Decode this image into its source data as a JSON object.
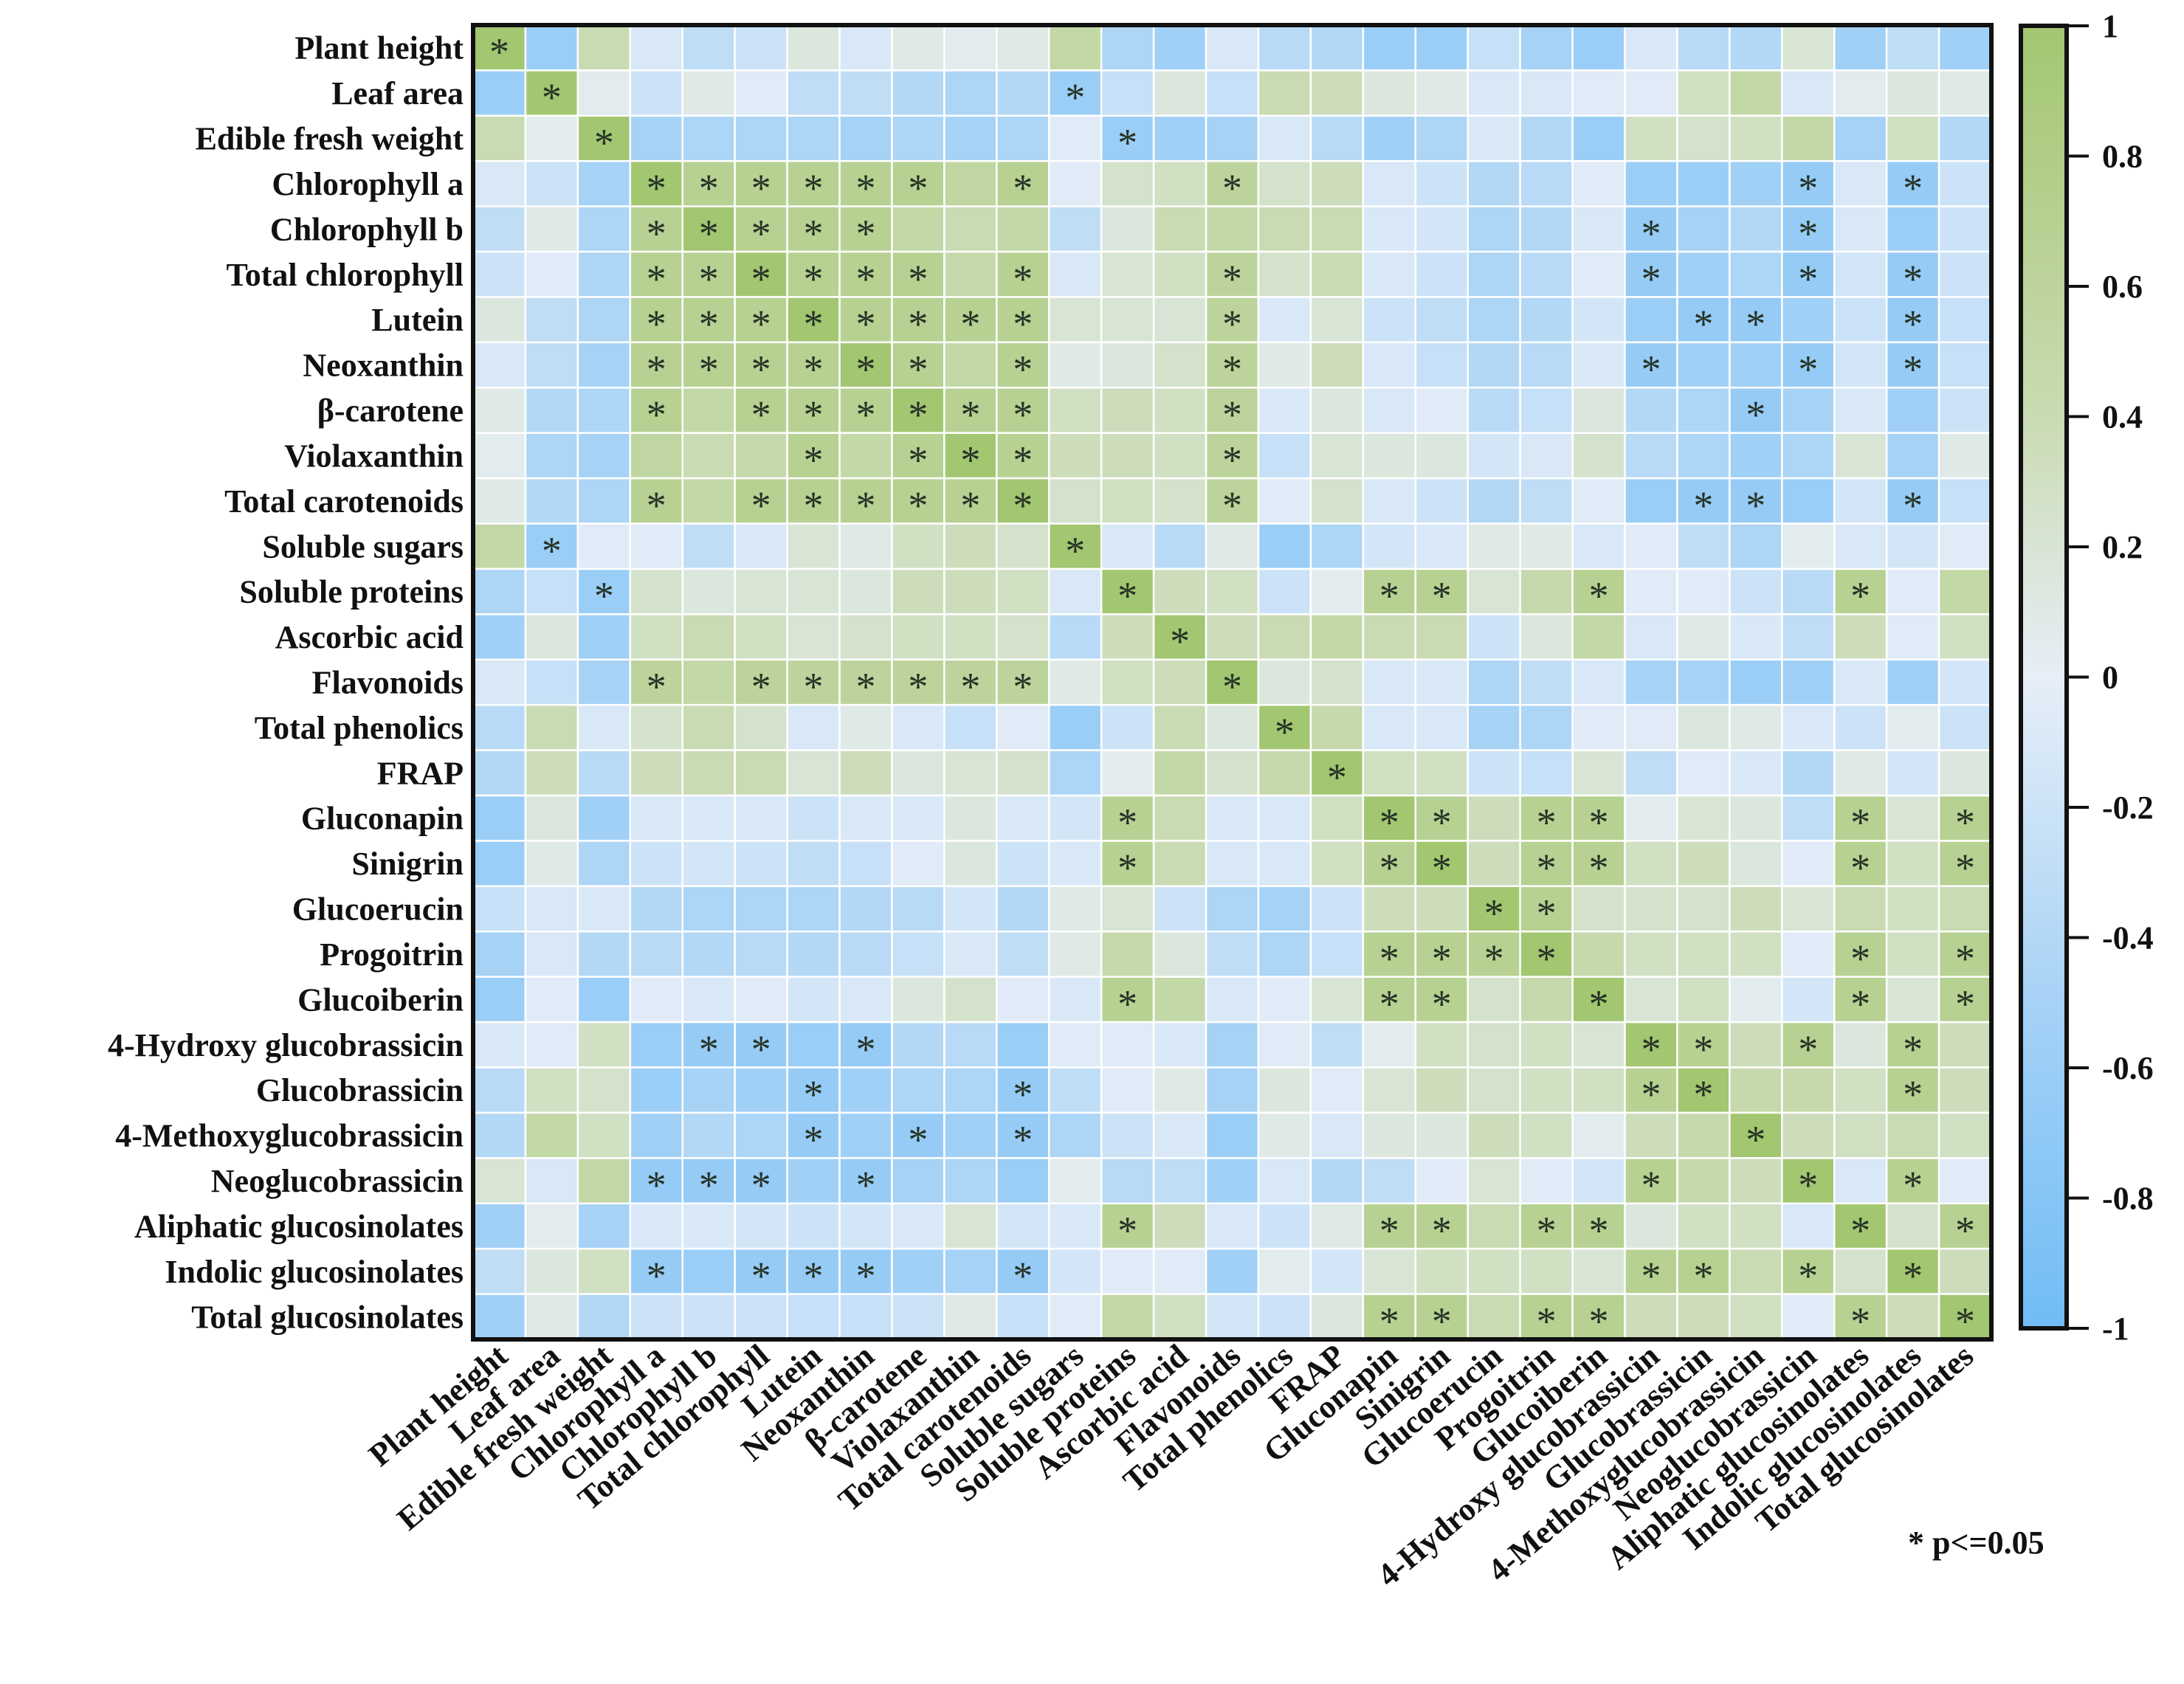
{
  "chart_data": {
    "type": "heatmap",
    "title": "",
    "symmetric": true,
    "variables": [
      "Plant height",
      "Leaf area",
      "Edible fresh weight",
      "Chlorophyll a",
      "Chlorophyll b",
      "Total chlorophyll",
      "Lutein",
      "Neoxanthin",
      "β-carotene",
      "Violaxanthin",
      "Total carotenoids",
      "Soluble sugars",
      "Soluble proteins",
      "Ascorbic acid",
      "Flavonoids",
      "Total phenolics",
      "FRAP",
      "Gluconapin",
      "Sinigrin",
      "Glucoerucin",
      "Progoitrin",
      "Glucoiberin",
      "4-Hydroxy glucobrassicin",
      "Glucobrassicin",
      "4-Methoxyglucobrassicin",
      "Neoglucobrassicin",
      "Aliphatic glucosinolates",
      "Indolic glucosinolates",
      "Total glucosinolates"
    ],
    "upper_triangle_values": [
      [
        1,
        -0.6,
        0.4,
        -0.1,
        -0.3,
        -0.2,
        0.15,
        -0.1,
        0.1,
        0.05,
        0.1,
        0.5,
        -0.45,
        -0.55,
        -0.1,
        -0.35,
        -0.4,
        -0.6,
        -0.6,
        -0.25,
        -0.5,
        -0.6,
        -0.1,
        -0.35,
        -0.4,
        0.2,
        -0.55,
        -0.3,
        -0.55
      ],
      [
        1,
        0.05,
        -0.2,
        0.1,
        -0.05,
        -0.3,
        -0.3,
        -0.4,
        -0.45,
        -0.4,
        -0.6,
        -0.25,
        0.15,
        -0.25,
        0.4,
        0.35,
        0.15,
        0.1,
        -0.1,
        -0.1,
        -0.05,
        -0.05,
        0.3,
        0.5,
        -0.1,
        0.05,
        0.15,
        0.1
      ],
      [
        1,
        -0.5,
        -0.45,
        -0.45,
        -0.45,
        -0.5,
        -0.45,
        -0.5,
        -0.45,
        -0.05,
        -0.6,
        -0.55,
        -0.5,
        -0.1,
        -0.35,
        -0.55,
        -0.45,
        -0.1,
        -0.4,
        -0.6,
        0.3,
        0.25,
        0.3,
        0.5,
        -0.5,
        0.3,
        -0.4
      ],
      [
        1,
        0.7,
        0.7,
        0.7,
        0.7,
        0.7,
        0.55,
        0.7,
        -0.05,
        0.25,
        0.3,
        0.6,
        0.25,
        0.35,
        -0.1,
        -0.2,
        -0.4,
        -0.35,
        -0.05,
        -0.6,
        -0.6,
        -0.55,
        -0.65,
        -0.1,
        -0.65,
        -0.2
      ],
      [
        1,
        0.7,
        0.7,
        0.7,
        0.5,
        0.4,
        0.5,
        -0.3,
        0.15,
        0.4,
        0.5,
        0.4,
        0.4,
        -0.1,
        -0.15,
        -0.45,
        -0.4,
        -0.1,
        -0.65,
        -0.5,
        -0.4,
        -0.65,
        -0.1,
        -0.6,
        -0.2
      ],
      [
        1,
        0.7,
        0.7,
        0.7,
        0.45,
        0.7,
        -0.1,
        0.2,
        0.3,
        0.6,
        0.25,
        0.4,
        -0.1,
        -0.2,
        -0.45,
        -0.35,
        -0.05,
        -0.65,
        -0.55,
        -0.45,
        -0.65,
        -0.15,
        -0.65,
        -0.2
      ],
      [
        1,
        0.7,
        0.7,
        0.7,
        0.7,
        0.2,
        0.2,
        0.2,
        0.6,
        -0.1,
        0.2,
        -0.2,
        -0.3,
        -0.45,
        -0.4,
        -0.15,
        -0.6,
        -0.65,
        -0.65,
        -0.55,
        -0.2,
        -0.65,
        -0.25
      ],
      [
        1,
        0.7,
        0.5,
        0.7,
        0.1,
        0.15,
        0.25,
        0.6,
        0.1,
        0.35,
        -0.1,
        -0.25,
        -0.4,
        -0.35,
        -0.1,
        -0.65,
        -0.55,
        -0.55,
        -0.65,
        -0.15,
        -0.65,
        -0.25
      ],
      [
        1,
        0.7,
        0.7,
        0.3,
        0.35,
        0.3,
        0.6,
        -0.1,
        0.15,
        -0.1,
        -0.05,
        -0.35,
        -0.25,
        0.15,
        -0.4,
        -0.45,
        -0.65,
        -0.5,
        -0.1,
        -0.55,
        -0.2
      ],
      [
        1,
        0.7,
        0.35,
        0.35,
        0.3,
        0.6,
        -0.25,
        0.2,
        0.15,
        0.15,
        -0.15,
        -0.1,
        0.25,
        -0.35,
        -0.45,
        -0.55,
        -0.45,
        0.2,
        -0.5,
        0.1
      ],
      [
        1,
        0.25,
        0.3,
        0.25,
        0.6,
        -0.05,
        0.25,
        -0.1,
        -0.2,
        -0.4,
        -0.3,
        -0.05,
        -0.6,
        -0.65,
        -0.65,
        -0.6,
        -0.15,
        -0.65,
        -0.25
      ],
      [
        1,
        -0.1,
        -0.35,
        0.1,
        -0.6,
        -0.45,
        -0.15,
        -0.1,
        0.1,
        0.1,
        -0.1,
        -0.05,
        -0.3,
        -0.45,
        0.05,
        -0.1,
        -0.15,
        -0.05
      ],
      [
        1,
        0.35,
        0.3,
        -0.2,
        0.05,
        0.7,
        0.7,
        0.2,
        0.45,
        0.7,
        -0.05,
        -0.05,
        -0.2,
        -0.35,
        0.7,
        -0.05,
        0.5
      ],
      [
        1,
        0.35,
        0.4,
        0.5,
        0.4,
        0.4,
        -0.2,
        0.15,
        0.5,
        -0.1,
        0.1,
        -0.1,
        -0.3,
        0.35,
        -0.05,
        0.3
      ],
      [
        1,
        0.15,
        0.25,
        -0.1,
        -0.1,
        -0.45,
        -0.3,
        -0.1,
        -0.5,
        -0.5,
        -0.6,
        -0.55,
        -0.1,
        -0.55,
        -0.15
      ],
      [
        1,
        0.45,
        -0.1,
        -0.1,
        -0.5,
        -0.45,
        -0.05,
        -0.05,
        0.15,
        0.1,
        -0.1,
        -0.2,
        0.05,
        -0.2
      ],
      [
        1,
        0.3,
        0.3,
        -0.2,
        -0.25,
        0.2,
        -0.3,
        -0.05,
        -0.1,
        -0.4,
        0.1,
        -0.15,
        0.15
      ],
      [
        1,
        0.7,
        0.35,
        0.7,
        0.7,
        0.05,
        0.2,
        0.15,
        -0.3,
        0.7,
        0.2,
        0.7
      ],
      [
        1,
        0.35,
        0.7,
        0.7,
        0.3,
        0.35,
        0.15,
        -0.05,
        0.7,
        0.3,
        0.7
      ],
      [
        1,
        0.7,
        0.25,
        0.25,
        0.25,
        0.35,
        0.2,
        0.4,
        0.3,
        0.4
      ],
      [
        1,
        0.45,
        0.3,
        0.3,
        0.3,
        -0.05,
        0.7,
        0.3,
        0.7
      ],
      [
        1,
        0.2,
        0.3,
        0.05,
        -0.15,
        0.7,
        0.2,
        0.7
      ],
      [
        1,
        0.7,
        0.35,
        0.7,
        0.15,
        0.7,
        0.35
      ],
      [
        1,
        0.45,
        0.45,
        0.3,
        0.7,
        0.35
      ],
      [
        1,
        0.35,
        0.3,
        0.4,
        0.3
      ],
      [
        1,
        -0.1,
        0.7,
        -0.05
      ],
      [
        1,
        0.25,
        0.7
      ],
      [
        1,
        0.35
      ],
      [
        1
      ]
    ],
    "significant_upper": [
      [
        0
      ],
      [
        1,
        11
      ],
      [
        2,
        12
      ],
      [
        3,
        4,
        5,
        6,
        7,
        8,
        10,
        14,
        25,
        27
      ],
      [
        4,
        5,
        6,
        7,
        22,
        25
      ],
      [
        5,
        6,
        7,
        8,
        10,
        14,
        22,
        25,
        27
      ],
      [
        6,
        7,
        8,
        9,
        10,
        14,
        23,
        24,
        27
      ],
      [
        7,
        8,
        10,
        14,
        22,
        25,
        27
      ],
      [
        8,
        9,
        10,
        14,
        24
      ],
      [
        9,
        10,
        14
      ],
      [
        10,
        14,
        23,
        24,
        27
      ],
      [
        11
      ],
      [
        12,
        17,
        18,
        21,
        26
      ],
      [
        13
      ],
      [
        14
      ],
      [
        15
      ],
      [
        16
      ],
      [
        17,
        18,
        20,
        21,
        26,
        28
      ],
      [
        18,
        20,
        21,
        26,
        28
      ],
      [
        19,
        20
      ],
      [
        20,
        26,
        28
      ],
      [
        21,
        26,
        28
      ],
      [
        22,
        23,
        25,
        27
      ],
      [
        23,
        27
      ],
      [
        24
      ],
      [
        25,
        27
      ],
      [
        26,
        28
      ],
      [
        27
      ],
      [
        28
      ]
    ],
    "significance_marker": "*",
    "legend_note": "* p<=0.05",
    "colorbar": {
      "range": [
        -1,
        1
      ],
      "ticks": [
        "1",
        "0.8",
        "0.6",
        "0.4",
        "0.2",
        "0",
        "-0.2",
        "-0.4",
        "-0.6",
        "-0.8",
        "-1"
      ],
      "tick_values": [
        1,
        0.8,
        0.6,
        0.4,
        0.2,
        0,
        -0.2,
        -0.4,
        -0.6,
        -0.8,
        -1
      ],
      "placement": "right"
    },
    "color_stops": [
      {
        "value": -1,
        "color": "#70bcf6"
      },
      {
        "value": -0.5,
        "color": "#a6d2f6"
      },
      {
        "value": 0,
        "color": "#e6eef7"
      },
      {
        "value": 0.4,
        "color": "#c9dbb2"
      },
      {
        "value": 1,
        "color": "#a3c671"
      }
    ]
  }
}
